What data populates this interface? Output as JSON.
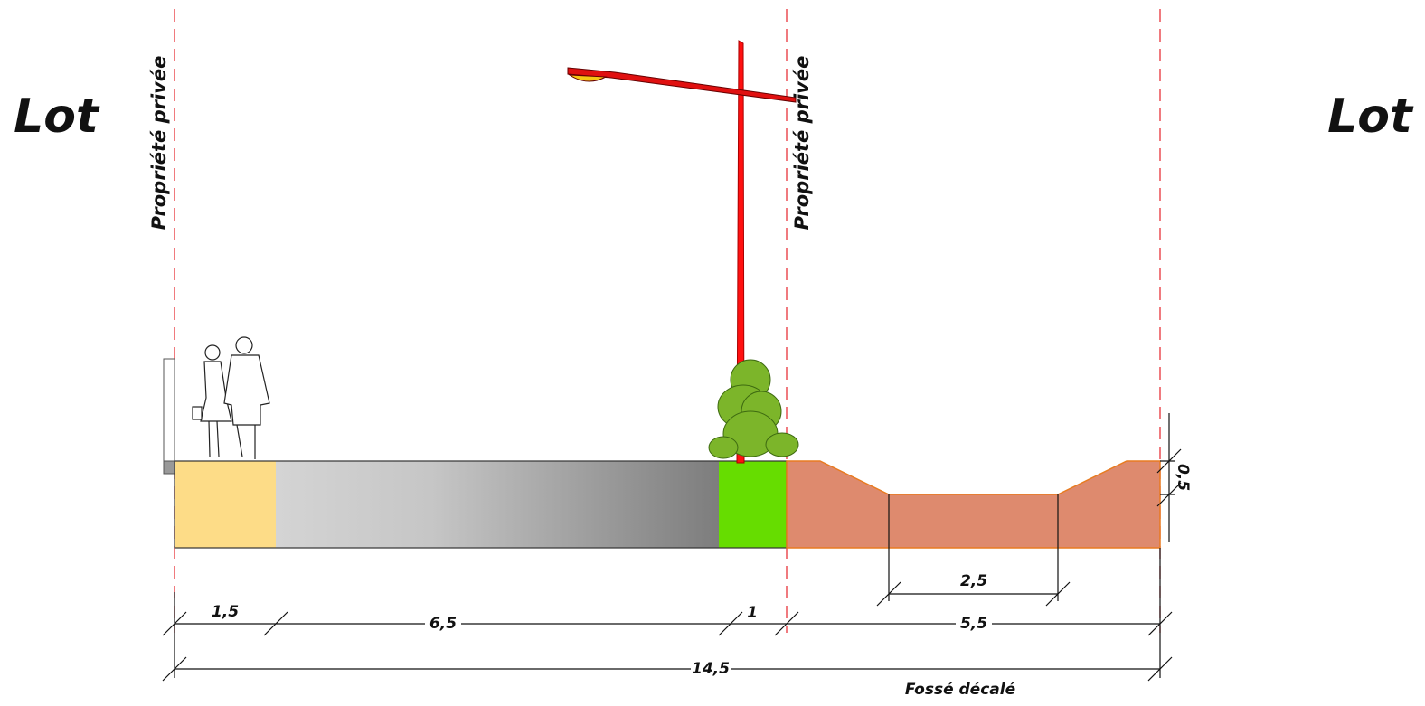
{
  "labels": {
    "lot_left": "Lot",
    "lot_right": "Lot",
    "property_left": "Propriété privée",
    "property_right": "Propriété privée"
  },
  "dimensions": {
    "sidewalk": "1,5",
    "roadway": "6,5",
    "planting": "1",
    "ditch_zone": "5,5",
    "total": "14,5",
    "ditch_bottom": "2,5",
    "ditch_depth": "0,5"
  },
  "caption": "Fossé décalé"
}
